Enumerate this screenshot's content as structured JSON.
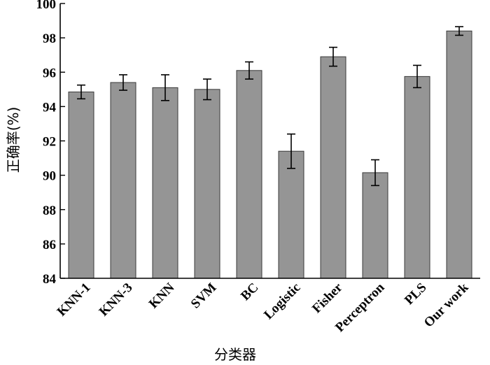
{
  "chart_data": {
    "type": "bar",
    "title": "",
    "xlabel": "分类器",
    "ylabel": "正确率(%)",
    "ylim": [
      84,
      100
    ],
    "yticks": [
      84,
      86,
      88,
      90,
      92,
      94,
      96,
      98,
      100
    ],
    "categories": [
      "KNN-1",
      "KNN-3",
      "KNN",
      "SVM",
      "BC",
      "Logistic",
      "Fisher",
      "Perceptron",
      "PLS",
      "Our work"
    ],
    "values": [
      94.85,
      95.4,
      95.1,
      95.0,
      96.1,
      91.4,
      96.9,
      90.15,
      95.75,
      98.4
    ],
    "error": [
      0.4,
      0.45,
      0.75,
      0.6,
      0.5,
      1.0,
      0.55,
      0.75,
      0.65,
      0.25
    ],
    "grid": false,
    "colors": {
      "bar": "#959595",
      "bar_edge": "#3a3a3a",
      "axis": "#000000"
    }
  }
}
